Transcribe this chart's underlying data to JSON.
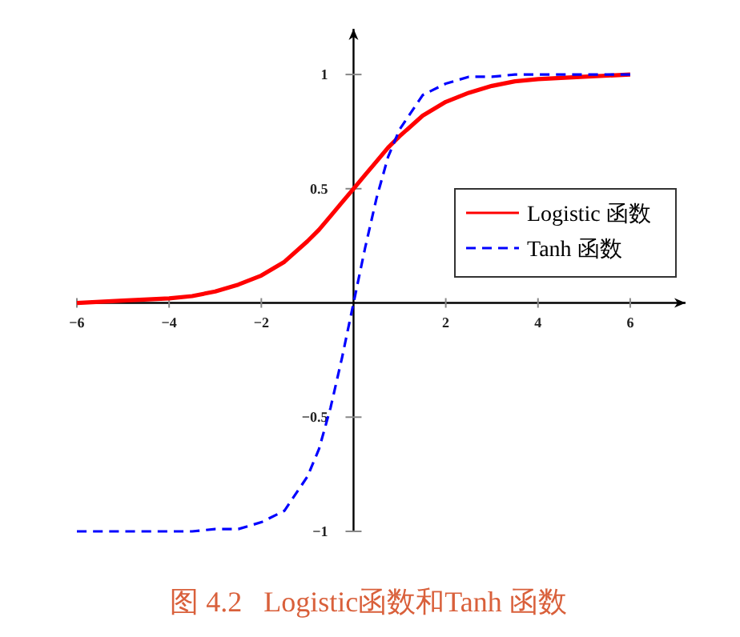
{
  "chart_data": {
    "type": "line",
    "title": "图 4.2   Logistic函数和Tanh 函数",
    "x": [
      -6,
      -5,
      -4,
      -3.5,
      -3,
      -2.5,
      -2,
      -1.5,
      -1,
      -0.75,
      -0.5,
      -0.25,
      0,
      0.25,
      0.5,
      0.75,
      1,
      1.5,
      2,
      2.5,
      3,
      3.5,
      4,
      5,
      6
    ],
    "series": [
      {
        "name": "Logistic 函数",
        "color": "#ff0000",
        "line_style": "solid",
        "values": [
          0.0,
          0.01,
          0.02,
          0.03,
          0.05,
          0.08,
          0.12,
          0.18,
          0.27,
          0.32,
          0.38,
          0.44,
          0.5,
          0.56,
          0.62,
          0.68,
          0.73,
          0.82,
          0.88,
          0.92,
          0.95,
          0.97,
          0.98,
          0.99,
          1.0
        ]
      },
      {
        "name": "Tanh 函数",
        "color": "#0000ff",
        "line_style": "dashed",
        "values": [
          -1,
          -1,
          -1,
          -1,
          -0.99,
          -0.99,
          -0.96,
          -0.91,
          -0.76,
          -0.64,
          -0.46,
          -0.24,
          0,
          0.24,
          0.46,
          0.64,
          0.76,
          0.91,
          0.96,
          0.99,
          0.99,
          1,
          1,
          1,
          1
        ]
      }
    ],
    "xlim": [
      -6,
      7.2
    ],
    "ylim": [
      -1,
      1.2
    ],
    "xticks": [
      -6,
      -4,
      -2,
      2,
      4,
      6
    ],
    "yticks": [
      -1,
      -0.5,
      0.5,
      1
    ],
    "grid": false,
    "legend": "right",
    "marker": "none"
  }
}
